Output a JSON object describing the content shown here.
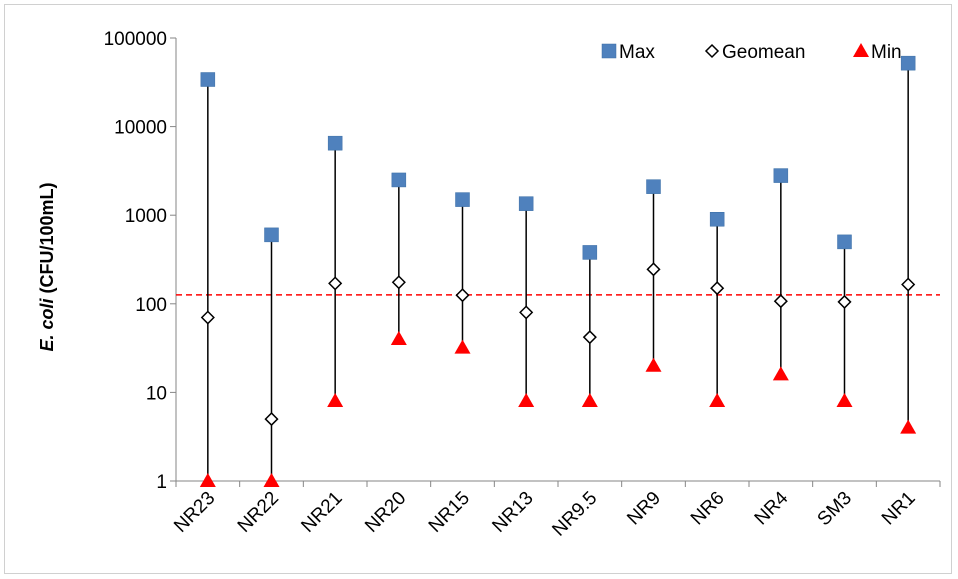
{
  "chart_data": {
    "type": "scatter",
    "title": "",
    "xlabel": "",
    "ylabel_italic": "E. coli",
    "ylabel_rest": " (CFU/100mL)",
    "ylabel": "E. coli (CFU/100mL)",
    "yscale": "log",
    "ylim": [
      1,
      100000
    ],
    "yticks": [
      1,
      10,
      100,
      1000,
      10000,
      100000
    ],
    "ytick_labels": [
      "1",
      "10",
      "100",
      "1000",
      "10000",
      "100000"
    ],
    "grid": false,
    "legend_position": "top-right",
    "categories": [
      "NR23",
      "NR22",
      "NR21",
      "NR20",
      "NR15",
      "NR13",
      "NR9.5",
      "NR9",
      "NR6",
      "NR4",
      "SM3",
      "NR1"
    ],
    "series": [
      {
        "name": "Max",
        "marker": "square",
        "color": "#4f81bd",
        "values": [
          34000,
          600,
          6500,
          2500,
          1500,
          1350,
          380,
          2100,
          900,
          2800,
          500,
          52000
        ]
      },
      {
        "name": "Geomean",
        "marker": "diamond-open",
        "color": "#000000",
        "values": [
          70,
          5,
          170,
          175,
          125,
          80,
          42,
          245,
          150,
          107,
          105,
          165
        ]
      },
      {
        "name": "Min",
        "marker": "triangle",
        "color": "#ff0000",
        "values": [
          1,
          1,
          8,
          40,
          32,
          8,
          8,
          20,
          8,
          16,
          8,
          4
        ]
      }
    ],
    "reference_line": {
      "value": 126,
      "color": "#ff0000",
      "style": "dashed"
    }
  }
}
